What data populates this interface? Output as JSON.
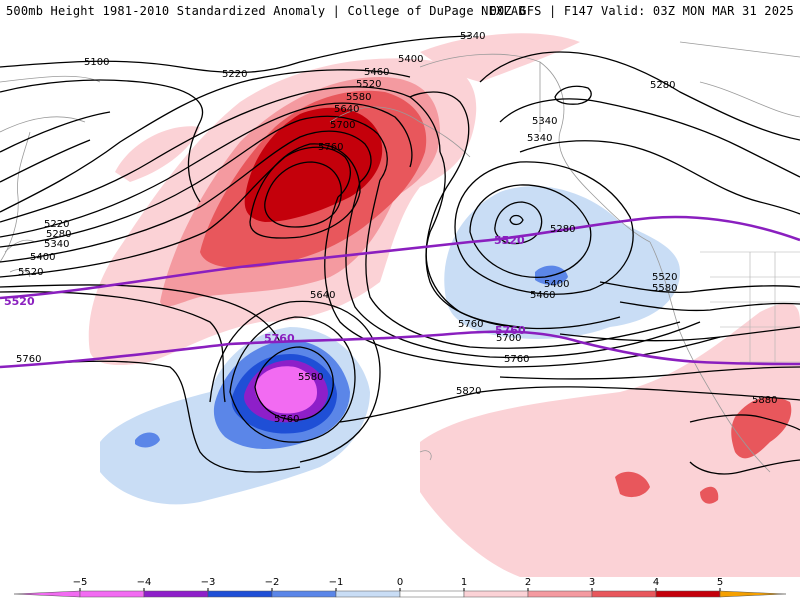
{
  "header": {
    "left_title": "500mb Height 1981-2010 Standardized Anomaly | College of DuPage NEXLAB",
    "right_title": "00Z GFS | F147 Valid: 03Z MON MAR 31 2025"
  },
  "colors": {
    "anom_neg5": "#f26bf2",
    "anom_neg4": "#8e1fc9",
    "anom_neg3": "#1f4fd6",
    "anom_neg2": "#5b86e8",
    "anom_neg1": "#c9ddf5",
    "anom_pos1": "#fbd2d6",
    "anom_pos2": "#f49aa0",
    "anom_pos3": "#e8575c",
    "anom_pos4": "#c4000b",
    "anom_pos5": "#f5a000",
    "height_contour": "#000000",
    "highlight_contour": "#8a1fbf"
  },
  "contour_labels": [
    "5340",
    "5100",
    "5220",
    "5400",
    "5460",
    "5520",
    "5580",
    "5640",
    "5700",
    "5760",
    "5220",
    "5280",
    "5340",
    "5400",
    "5520",
    "5280",
    "5340",
    "5280",
    "5340",
    "5400",
    "5460",
    "5520",
    "5580",
    "5640",
    "5760",
    "5700",
    "5760",
    "5820",
    "5880",
    "5580",
    "5760",
    "5760"
  ],
  "highlight_labels": [
    "5520",
    "5760",
    "5520",
    "5760"
  ],
  "colorbar": {
    "ticks": [
      "−5",
      "−4",
      "−3",
      "−2",
      "−1",
      "0",
      "1",
      "2",
      "3",
      "4",
      "5"
    ]
  }
}
